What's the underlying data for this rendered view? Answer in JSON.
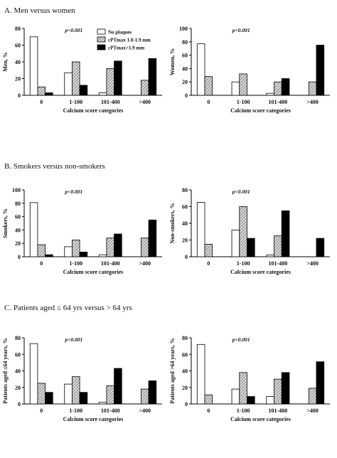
{
  "panels": [
    {
      "title": "A. Men versus women"
    },
    {
      "title": "B. Smokers versus non-smokers"
    },
    {
      "title": "C. Patients aged ≤ 64 yrs versus > 64 yrs"
    }
  ],
  "legend": {
    "placement": "top-center of first chart",
    "items": [
      "No plaques",
      "cPTmax 1.0-1.9 mm",
      "cPTmax>1.9 mm"
    ]
  },
  "colors": {
    "no_plaques": "#ffffff",
    "mid": "hatched gray",
    "high": "#000000"
  },
  "chart_data": [
    {
      "type": "bar",
      "title": "",
      "ylabel": "Men, %",
      "xlabel": "Calcium score categories",
      "annotation": "p<0.001",
      "ylim": [
        0,
        80
      ],
      "yticks": [
        0,
        20,
        40,
        60,
        80
      ],
      "categories": [
        "0",
        "1-100",
        "101-400",
        ">400"
      ],
      "series": [
        {
          "name": "No plaques",
          "values": [
            70,
            27,
            3,
            0
          ]
        },
        {
          "name": "cPTmax 1.0-1.9 mm",
          "values": [
            10,
            40,
            32,
            18
          ]
        },
        {
          "name": "cPTmax>1.9 mm",
          "values": [
            3,
            12,
            41,
            44
          ]
        }
      ]
    },
    {
      "type": "bar",
      "title": "",
      "ylabel": "Women, %",
      "xlabel": "Calcium score categories",
      "annotation": "p<0.001",
      "ylim": [
        0,
        100
      ],
      "yticks": [
        0,
        20,
        40,
        60,
        80,
        100
      ],
      "categories": [
        "0",
        "1-100",
        "101-400",
        ">400"
      ],
      "series": [
        {
          "name": "No plaques",
          "values": [
            77,
            20,
            3,
            0
          ]
        },
        {
          "name": "cPTmax 1.0-1.9 mm",
          "values": [
            28,
            32,
            20,
            20
          ]
        },
        {
          "name": "cPTmax>1.9 mm",
          "values": [
            0,
            0,
            25,
            75
          ]
        }
      ]
    },
    {
      "type": "bar",
      "title": "",
      "ylabel": "Smokers, %",
      "xlabel": "Calcium score categories",
      "annotation": "p<0.001",
      "ylim": [
        0,
        100
      ],
      "yticks": [
        0,
        20,
        40,
        60,
        80,
        100
      ],
      "categories": [
        "0",
        "1-100",
        "101-400",
        ">400"
      ],
      "series": [
        {
          "name": "No plaques",
          "values": [
            81,
            15,
            3,
            0
          ]
        },
        {
          "name": "cPTmax 1.0-1.9 mm",
          "values": [
            18,
            25,
            28,
            28
          ]
        },
        {
          "name": "cPTmax>1.9 mm",
          "values": [
            3,
            7,
            34,
            55
          ]
        }
      ]
    },
    {
      "type": "bar",
      "title": "",
      "ylabel": "Non-smokers, %",
      "xlabel": "Calcium score categories",
      "annotation": "p<0.001",
      "ylim": [
        0,
        80
      ],
      "yticks": [
        0,
        20,
        40,
        60,
        80
      ],
      "categories": [
        "0",
        "1-100",
        "101-400",
        ">400"
      ],
      "series": [
        {
          "name": "No plaques",
          "values": [
            65,
            32,
            2,
            0
          ]
        },
        {
          "name": "cPTmax 1.0-1.9 mm",
          "values": [
            15,
            60,
            25,
            0
          ]
        },
        {
          "name": "cPTmax>1.9 mm",
          "values": [
            0,
            22,
            55,
            22
          ]
        }
      ]
    },
    {
      "type": "bar",
      "title": "",
      "ylabel": "Patients aged ≤64 years, %",
      "xlabel": "Calcium score categories",
      "annotation": "p<0.001",
      "ylim": [
        0,
        80
      ],
      "yticks": [
        0,
        20,
        40,
        60,
        80
      ],
      "categories": [
        "0",
        "1-100",
        "101-400",
        ">400"
      ],
      "series": [
        {
          "name": "No plaques",
          "values": [
            73,
            24,
            2,
            0
          ]
        },
        {
          "name": "cPTmax 1.0-1.9 mm",
          "values": [
            25,
            33,
            22,
            18
          ]
        },
        {
          "name": "cPTmax>1.9 mm",
          "values": [
            14,
            14,
            43,
            28
          ]
        }
      ]
    },
    {
      "type": "bar",
      "title": "",
      "ylabel": "Patients aged >64 years, %",
      "xlabel": "Calcium score categories",
      "annotation": "p<0.001",
      "ylim": [
        0,
        80
      ],
      "yticks": [
        0,
        20,
        40,
        60,
        80
      ],
      "categories": [
        "0",
        "1-100",
        "101-400",
        ">400"
      ],
      "series": [
        {
          "name": "No plaques",
          "values": [
            72,
            18,
            9,
            0
          ]
        },
        {
          "name": "cPTmax 1.0-1.9 mm",
          "values": [
            11,
            38,
            30,
            19
          ]
        },
        {
          "name": "cPTmax>1.9 mm",
          "values": [
            0,
            9,
            38,
            51
          ]
        }
      ]
    }
  ]
}
